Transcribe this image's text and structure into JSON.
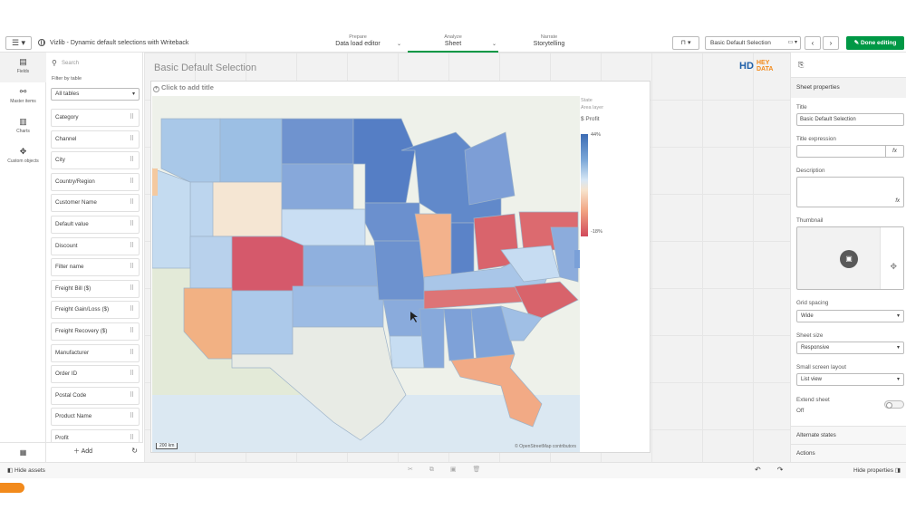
{
  "topbar": {
    "menu_icon": "hamburger-icon",
    "app_title": "Vizlib - Dynamic default selections with Writeback",
    "tabs": [
      {
        "sub": "Prepare",
        "label": "Data load editor"
      },
      {
        "sub": "Analyze",
        "label": "Sheet"
      },
      {
        "sub": "Narrate",
        "label": "Storytelling"
      }
    ],
    "bookmark_icon": "bookmark-icon",
    "sheet_name": "Basic Default Selection",
    "done_label": "Done editing"
  },
  "rail": {
    "items": [
      {
        "label": "Fields",
        "icon": "fields-icon"
      },
      {
        "label": "Master items",
        "icon": "link-icon"
      },
      {
        "label": "Charts",
        "icon": "chart-icon"
      },
      {
        "label": "Custom objects",
        "icon": "puzzle-icon"
      }
    ]
  },
  "fields": {
    "search_placeholder": "Search",
    "filter_label": "Filter by table",
    "filter_value": "All tables",
    "items": [
      "Category",
      "Channel",
      "City",
      "Country/Region",
      "Customer Name",
      "Default value",
      "Discount",
      "Filter name",
      "Freight Bill ($)",
      "Freight Gain/Loss ($)",
      "Freight Recovery ($)",
      "Manufacturer",
      "Order ID",
      "Postal Code",
      "Product Name",
      "Profit"
    ],
    "add_label": "Add"
  },
  "canvas": {
    "sheet_title": "Basic Default Selection",
    "logo_hd": "HD",
    "logo_hey": "HEY",
    "logo_data": "DATA",
    "object_title": "Click to add title",
    "legend": {
      "layer_title": "State",
      "layer_type": "Area layer",
      "measure": "$ Profit",
      "max": "44%",
      "min": "-18%"
    },
    "scale_label": "200 km",
    "attribution": "© OpenStreetMap contributors"
  },
  "props": {
    "header": "Sheet properties",
    "title_label": "Title",
    "title_value": "Basic Default Selection",
    "title_expr_label": "Title expression",
    "description_label": "Description",
    "thumbnail_label": "Thumbnail",
    "grid_label": "Grid spacing",
    "grid_value": "Wide",
    "size_label": "Sheet size",
    "size_value": "Responsive",
    "small_label": "Small screen layout",
    "small_value": "List view",
    "extend_label": "Extend sheet",
    "extend_value": "Off",
    "alt_states": "Alternate states",
    "actions": "Actions",
    "fx": "fx"
  },
  "bottombar": {
    "hide_assets": "Hide assets",
    "hide_props": "Hide properties"
  },
  "colors": {
    "accent_green": "#009845",
    "profit_high": "#3d6cb4",
    "profit_low": "#d1495b"
  }
}
